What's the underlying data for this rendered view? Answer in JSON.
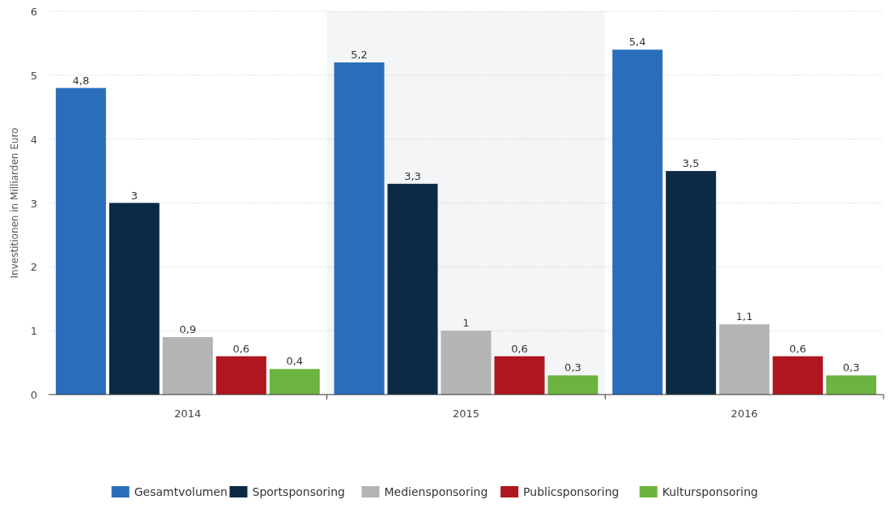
{
  "chart_data": {
    "type": "bar",
    "ylabel": "Investitionen in Milliarden Euro",
    "categories": [
      "2014",
      "2015",
      "2016"
    ],
    "series": [
      {
        "name": "Gesamtvolumen",
        "color": "#2a6ebb",
        "values": [
          4.8,
          5.2,
          5.4
        ],
        "value_labels": [
          "4,8",
          "5,2",
          "5,4"
        ]
      },
      {
        "name": "Sportsponsoring",
        "color": "#0c2a43",
        "values": [
          3,
          3.3,
          3.5
        ],
        "value_labels": [
          "3",
          "3,3",
          "3,5"
        ]
      },
      {
        "name": "Mediensponsoring",
        "color": "#b4b4b4",
        "values": [
          0.9,
          1,
          1.1
        ],
        "value_labels": [
          "0,9",
          "1",
          "1,1"
        ]
      },
      {
        "name": "Publicsponsoring",
        "color": "#b0161d",
        "values": [
          0.6,
          0.6,
          0.6
        ],
        "value_labels": [
          "0,6",
          "0,6",
          "0,6"
        ]
      },
      {
        "name": "Kultursponsoring",
        "color": "#6cb33f",
        "values": [
          0.4,
          0.3,
          0.3
        ],
        "value_labels": [
          "0,4",
          "0,3",
          "0,3"
        ]
      }
    ],
    "ylim": [
      0,
      6
    ],
    "yticks": [
      0,
      1,
      2,
      3,
      4,
      5,
      6
    ],
    "grid": "y",
    "legend": "bottom",
    "bands": [
      {
        "axis": "x",
        "from": "2015",
        "to": "2015",
        "color": "#f4f5f7"
      }
    ]
  }
}
